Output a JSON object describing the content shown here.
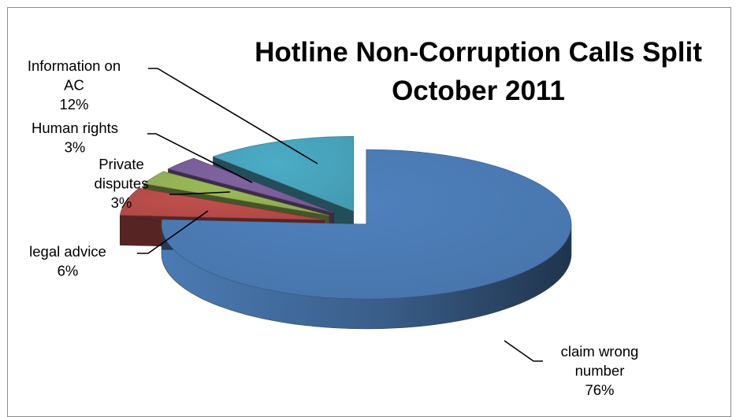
{
  "chart_data": {
    "type": "pie",
    "style": "3d-exploded",
    "title_lines": [
      "Hotline Non-Corruption Calls Split",
      "October 2011"
    ],
    "categories": [
      "claim wrong number",
      "legal advice",
      "Private disputes",
      "Human rights",
      "Information on AC"
    ],
    "values": [
      76,
      6,
      3,
      3,
      12
    ],
    "value_labels": [
      "76%",
      "6%",
      "3%",
      "3%",
      "12%"
    ],
    "label_lines": [
      [
        "claim wrong",
        "number",
        "76%"
      ],
      [
        "legal advice",
        "6%"
      ],
      [
        "Private",
        "disputes",
        "3%"
      ],
      [
        "Human rights",
        "3%"
      ],
      [
        "Information on",
        "AC",
        "12%"
      ]
    ],
    "colors": [
      "#4f81bd",
      "#c0504d",
      "#9bbb59",
      "#8064a2",
      "#4bacc6"
    ],
    "legend": "none"
  }
}
